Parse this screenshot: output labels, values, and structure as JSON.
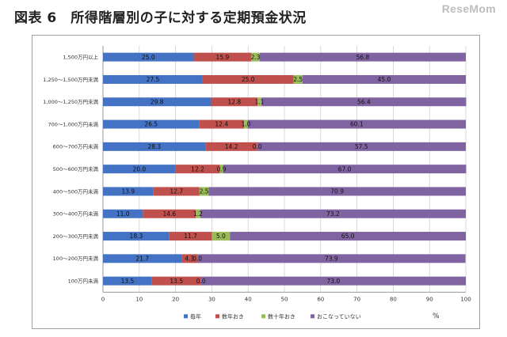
{
  "page": {
    "title": "図表 6　所得階層別の子に対する定期預金状況",
    "logo": "ReseMom"
  },
  "chart_data": {
    "type": "bar",
    "orientation": "horizontal",
    "stacked": true,
    "categories": [
      "1,500万円以上",
      "1,250～1,500万円未満",
      "1,000～1,250万円未満",
      "700～1,000万円未満",
      "600～700万円未満",
      "500～600万円未満",
      "400～500万円未満",
      "300～400万円未満",
      "200～300万円未満",
      "100～200万円未満",
      "100万円未満"
    ],
    "series": [
      {
        "name": "毎年",
        "color": "#4472c4",
        "values": [
          25.0,
          27.5,
          29.8,
          26.5,
          28.3,
          20.0,
          13.9,
          11.0,
          18.3,
          21.7,
          13.5
        ],
        "labels": [
          "25.0",
          "27.5",
          "29.8",
          "26.5",
          "28.3",
          "20.0",
          "13.9",
          "11.0",
          "18.3",
          "21.7",
          "13.5"
        ]
      },
      {
        "name": "数年おき",
        "color": "#c0504d",
        "values": [
          15.9,
          25.0,
          12.8,
          12.4,
          14.2,
          12.2,
          12.7,
          14.6,
          11.7,
          4.3,
          13.5
        ],
        "labels": [
          "15.9",
          "25.0",
          "12.8",
          "12.4",
          "14.2",
          "12.2",
          "12.7",
          "14.6",
          "11.7",
          "4.3",
          "13.5"
        ]
      },
      {
        "name": "数十年おき",
        "color": "#9bbb59",
        "values": [
          2.3,
          2.5,
          1.1,
          1.0,
          0.0,
          0.9,
          2.5,
          1.2,
          5.0,
          0.0,
          0.0
        ],
        "labels": [
          "2.3",
          "2.5",
          "1.1",
          "1.0",
          "0.0",
          "0.9",
          "2.5",
          "1.2",
          "5.0",
          "0.0",
          "0.0"
        ]
      },
      {
        "name": "おこなっていない",
        "color": "#8064a2",
        "values": [
          56.8,
          45.0,
          56.4,
          60.1,
          57.5,
          67.0,
          70.9,
          73.2,
          65.0,
          73.9,
          73.0
        ],
        "labels": [
          "56.8",
          "45.0",
          "56.4",
          "60.1",
          "57.5",
          "67.0",
          "70.9",
          "73.2",
          "65.0",
          "73.9",
          "73.0"
        ]
      }
    ],
    "xlim": [
      0,
      100
    ],
    "xticks": [
      0,
      10,
      20,
      30,
      40,
      50,
      60,
      70,
      80,
      90,
      100
    ],
    "xlabel": "%",
    "legend_position": "bottom",
    "grid": true
  }
}
